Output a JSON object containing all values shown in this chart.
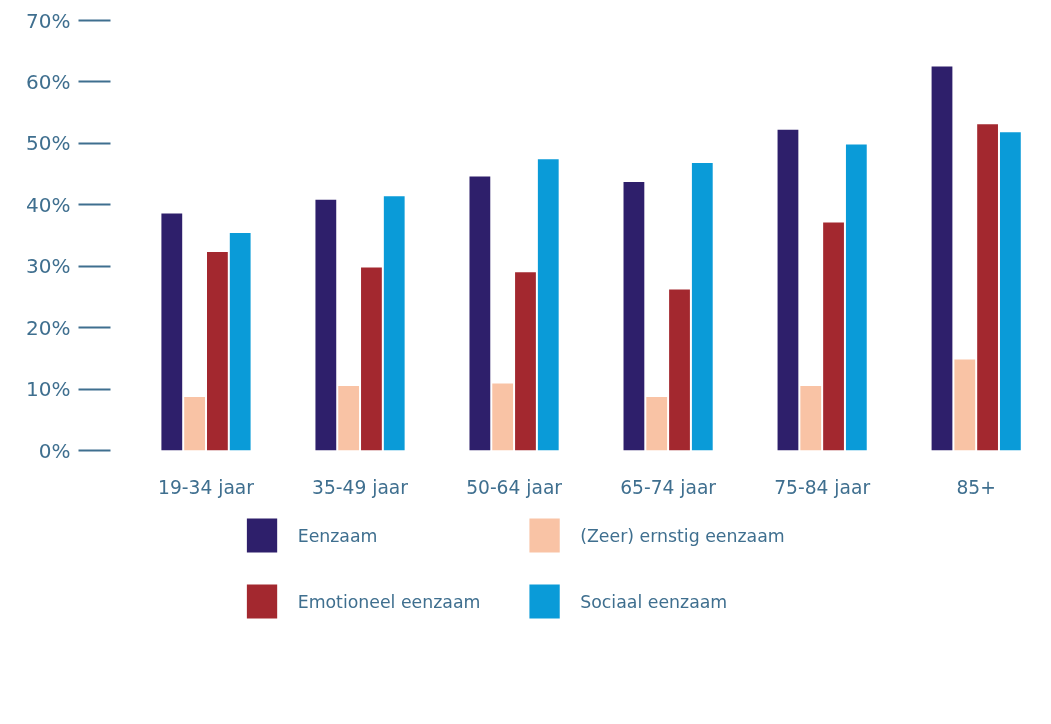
{
  "chart_data": {
    "type": "bar",
    "categories": [
      "19-34 jaar",
      "35-49 jaar",
      "50-64 jaar",
      "65-74 jaar",
      "75-84 jaar",
      "85+"
    ],
    "series": [
      {
        "name": "Eenzaam",
        "color": "#2e1f6b",
        "values": [
          38.6,
          40.8,
          44.6,
          43.7,
          52.2,
          62.5
        ]
      },
      {
        "name": "(Zeer) ernstig eenzaam",
        "color": "#f9c3a5",
        "values": [
          8.7,
          10.5,
          10.9,
          8.7,
          10.5,
          14.8
        ]
      },
      {
        "name": "Emotioneel eenzaam",
        "color": "#a3282f",
        "values": [
          32.3,
          29.8,
          29.0,
          26.2,
          37.1,
          53.1
        ]
      },
      {
        "name": "Sociaal eenzaam",
        "color": "#0a9bd8",
        "values": [
          35.4,
          41.4,
          47.4,
          46.8,
          49.8,
          51.8
        ]
      }
    ],
    "ylim": [
      0,
      70
    ],
    "yticks": [
      {
        "value": 0,
        "label": "0%"
      },
      {
        "value": 10,
        "label": "10%"
      },
      {
        "value": 20,
        "label": "20%"
      },
      {
        "value": 30,
        "label": "30%"
      },
      {
        "value": 40,
        "label": "40%"
      },
      {
        "value": 50,
        "label": "50%"
      },
      {
        "value": 60,
        "label": "60%"
      },
      {
        "value": 70,
        "label": "70%"
      }
    ],
    "grid": false,
    "legend": "bottom"
  }
}
